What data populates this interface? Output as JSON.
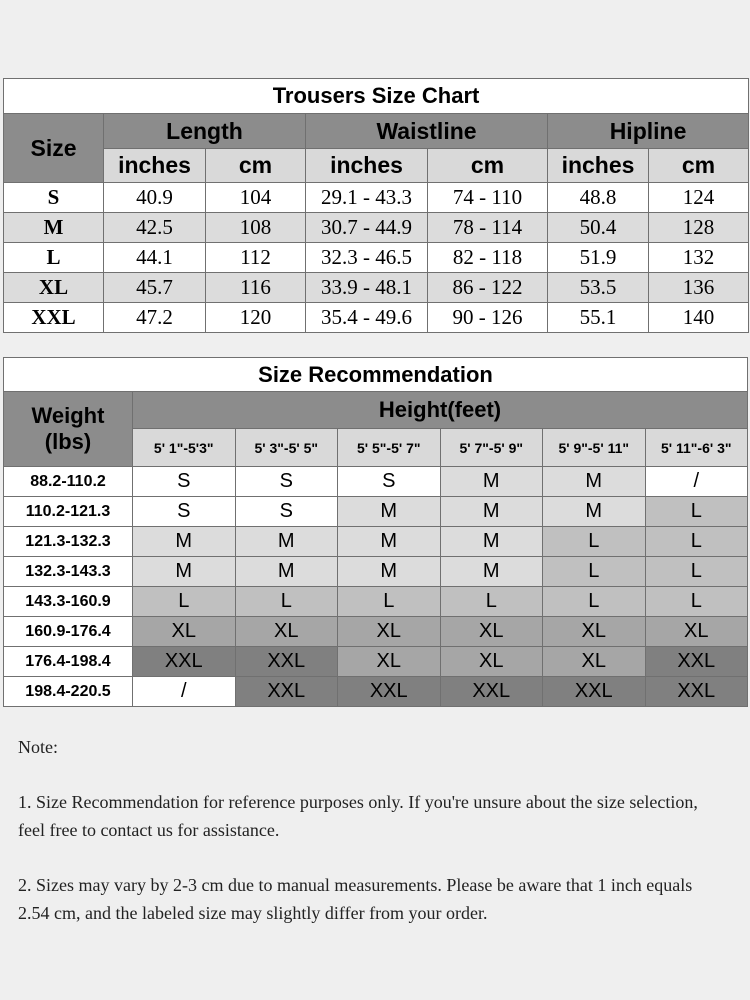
{
  "size_chart": {
    "title": "Trousers  Size  Chart",
    "size_header": "Size",
    "groups": [
      "Length",
      "Waistline",
      "Hipline"
    ],
    "units": [
      "inches",
      "cm",
      "inches",
      "cm",
      "inches",
      "cm"
    ],
    "rows": [
      [
        "S",
        "40.9",
        "104",
        "29.1 - 43.3",
        "74 - 110",
        "48.8",
        "124"
      ],
      [
        "M",
        "42.5",
        "108",
        "30.7 - 44.9",
        "78 - 114",
        "50.4",
        "128"
      ],
      [
        "L",
        "44.1",
        "112",
        "32.3 - 46.5",
        "82 - 118",
        "51.9",
        "132"
      ],
      [
        "XL",
        "45.7",
        "116",
        "33.9 - 48.1",
        "86 - 122",
        "53.5",
        "136"
      ],
      [
        "XXL",
        "47.2",
        "120",
        "35.4 - 49.6",
        "90 - 126",
        "55.1",
        "140"
      ]
    ]
  },
  "recommendation": {
    "title": "Size Recommendation",
    "weight_header": "Weight",
    "weight_unit": "(lbs)",
    "height_header": "Height(feet)",
    "heights": [
      "5' 1\"-5'3\"",
      "5' 3\"-5' 5\"",
      "5' 5\"-5' 7\"",
      "5' 7\"-5' 9\"",
      "5' 9\"-5' 11\"",
      "5' 11\"-6' 3\""
    ],
    "rows": [
      [
        "88.2-110.2",
        "S",
        "S",
        "S",
        "M",
        "M",
        "/"
      ],
      [
        "110.2-121.3",
        "S",
        "S",
        "M",
        "M",
        "M",
        "L"
      ],
      [
        "121.3-132.3",
        "M",
        "M",
        "M",
        "M",
        "L",
        "L"
      ],
      [
        "132.3-143.3",
        "M",
        "M",
        "M",
        "M",
        "L",
        "L"
      ],
      [
        "143.3-160.9",
        "L",
        "L",
        "L",
        "L",
        "L",
        "L"
      ],
      [
        "160.9-176.4",
        "XL",
        "XL",
        "XL",
        "XL",
        "XL",
        "XL"
      ],
      [
        "176.4-198.4",
        "XXL",
        "XXL",
        "XL",
        "XL",
        "XL",
        "XXL"
      ],
      [
        "198.4-220.5",
        "/",
        "XXL",
        "XXL",
        "XXL",
        "XXL",
        "XXL"
      ]
    ],
    "size_colors": {
      "S": "#ffffff",
      "M": "#dcdcdc",
      "L": "#c0c0c0",
      "XL": "#a6a6a6",
      "XXL": "#808080",
      "/": "#ffffff"
    }
  },
  "notes": {
    "heading": "Note:",
    "items": [
      "1. Size Recommendation for reference purposes only. If you're unsure about the size selection, feel free to contact us for assistance.",
      "2. Sizes may vary by 2-3 cm due to manual measurements. Please be aware that 1 inch equals 2.54 cm, and the labeled size may slightly differ from your order."
    ]
  }
}
